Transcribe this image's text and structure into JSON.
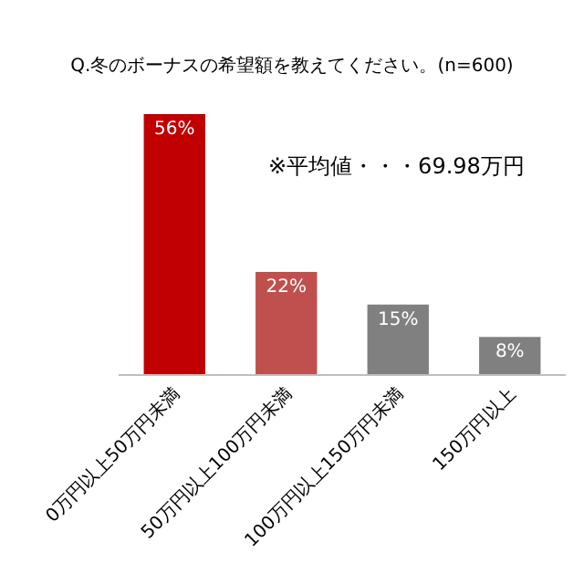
{
  "chart_data": {
    "type": "bar",
    "title": "Q.冬のボーナスの希望額を教えてください。(n=600)",
    "categories": [
      "0万円以上50万円未満",
      "50万円以上100万円未満",
      "100万円以上150万円未満",
      "150万円以上"
    ],
    "values": [
      56,
      22,
      15,
      8
    ],
    "colors": [
      "#c00000",
      "#c0504d",
      "#808080",
      "#808080"
    ],
    "value_labels": [
      "56%",
      "22%",
      "15%",
      "8%"
    ],
    "annotations": [
      "※平均値・・・69.98万円"
    ],
    "grid": false
  }
}
